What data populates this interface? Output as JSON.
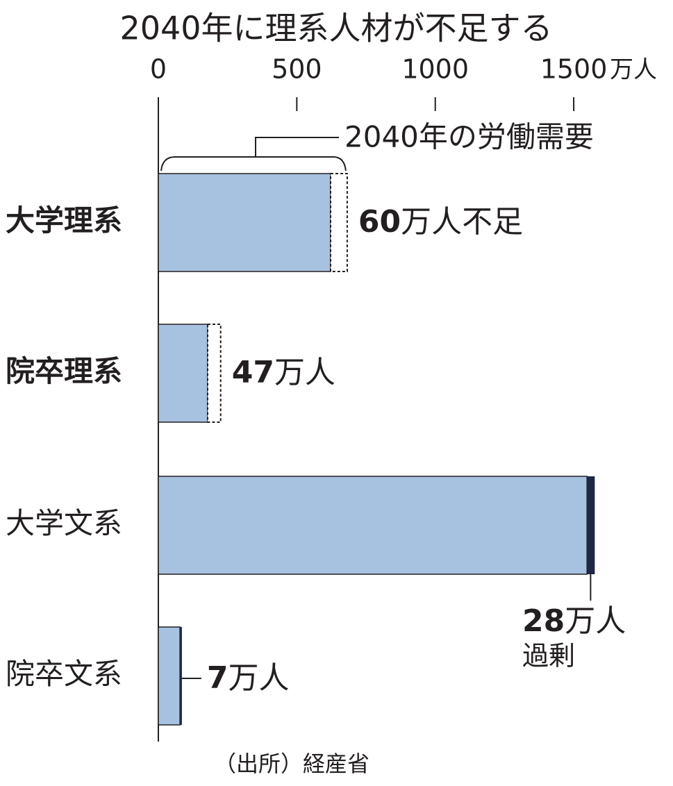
{
  "chart_data": {
    "type": "gap-bar",
    "title": "2040年に理系人材が不足する",
    "categories": [
      "大学理系",
      "院卒理系",
      "大学文系",
      "院卒文系"
    ],
    "category_bold": [
      true,
      true,
      false,
      false
    ],
    "values": [
      622,
      178,
      1548,
      78
    ],
    "gaps": [
      60,
      47,
      28,
      7
    ],
    "gap_kinds": [
      "shortage",
      "shortage",
      "surplus",
      "surplus"
    ],
    "value_labels": [
      "60万人不足",
      "47万人",
      "28万人",
      "7万人"
    ],
    "surplus_note": "過剰",
    "bracket_label": "2040年の労働需要",
    "color": "#a7c2e0",
    "surplus_color": "#1f2747",
    "xlim": [
      0,
      1600
    ],
    "xticks": [
      0,
      500,
      1000,
      1500
    ],
    "x_unit": "万人",
    "source": "（出所）経産省"
  }
}
